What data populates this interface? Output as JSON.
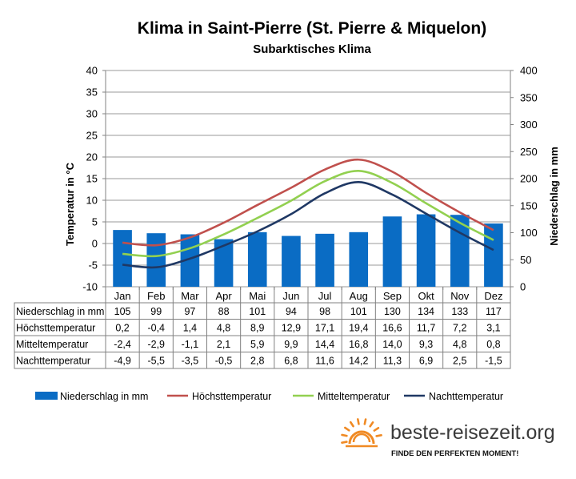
{
  "chart_data": {
    "type": "bar+line",
    "title": "Klima in Saint-Pierre (St. Pierre & Miquelon)",
    "subtitle": "Subarktisches Klima",
    "ylabel_left": "Temperatur in °C",
    "ylabel_right": "Niederschlag in mm",
    "ylim_left": [
      -10,
      40
    ],
    "yticks_left": [
      "-10",
      "-5",
      "0",
      "5",
      "10",
      "15",
      "20",
      "25",
      "30",
      "35",
      "40"
    ],
    "ylim_right": [
      0,
      400
    ],
    "yticks_right": [
      "0",
      "50",
      "100",
      "150",
      "200",
      "250",
      "300",
      "350",
      "400"
    ],
    "categories": [
      "Jan",
      "Feb",
      "Mar",
      "Apr",
      "Mai",
      "Jun",
      "Jul",
      "Aug",
      "Sep",
      "Okt",
      "Nov",
      "Dez"
    ],
    "series": [
      {
        "name": "Niederschlag in mm",
        "type": "bar",
        "axis": "right",
        "color": "#0a6cc4",
        "values": [
          105,
          99,
          97,
          88,
          101,
          94,
          98,
          101,
          130,
          134,
          133,
          117
        ],
        "labels": [
          "105",
          "99",
          "97",
          "88",
          "101",
          "94",
          "98",
          "101",
          "130",
          "134",
          "133",
          "117"
        ]
      },
      {
        "name": "Höchsttemperatur",
        "type": "line",
        "axis": "left",
        "color": "#c0504d",
        "values": [
          0.2,
          -0.4,
          1.4,
          4.8,
          8.9,
          12.9,
          17.1,
          19.4,
          16.6,
          11.7,
          7.2,
          3.1
        ],
        "labels": [
          "0,2",
          "-0,4",
          "1,4",
          "4,8",
          "8,9",
          "12,9",
          "17,1",
          "19,4",
          "16,6",
          "11,7",
          "7,2",
          "3,1"
        ]
      },
      {
        "name": "Mitteltemperatur",
        "type": "line",
        "axis": "left",
        "color": "#92d050",
        "values": [
          -2.4,
          -2.9,
          -1.1,
          2.1,
          5.9,
          9.9,
          14.4,
          16.8,
          14.0,
          9.3,
          4.8,
          0.8
        ],
        "labels": [
          "-2,4",
          "-2,9",
          "-1,1",
          "2,1",
          "5,9",
          "9,9",
          "14,4",
          "16,8",
          "14,0",
          "9,3",
          "4,8",
          "0,8"
        ]
      },
      {
        "name": "Nachttemperatur",
        "type": "line",
        "axis": "left",
        "color": "#1f3864",
        "values": [
          -4.9,
          -5.5,
          -3.5,
          -0.5,
          2.8,
          6.8,
          11.6,
          14.2,
          11.3,
          6.9,
          2.5,
          -1.5
        ],
        "labels": [
          "-4,9",
          "-5,5",
          "-3,5",
          "-0,5",
          "2,8",
          "6,8",
          "11,6",
          "14,2",
          "11,3",
          "6,9",
          "2,5",
          "-1,5"
        ]
      }
    ],
    "legend": "bottom"
  },
  "branding": {
    "site": "beste-reisezeit.org",
    "slogan": "FINDE DEN PERFEKTEN MOMENT!",
    "sun_color": "#f08a24"
  }
}
